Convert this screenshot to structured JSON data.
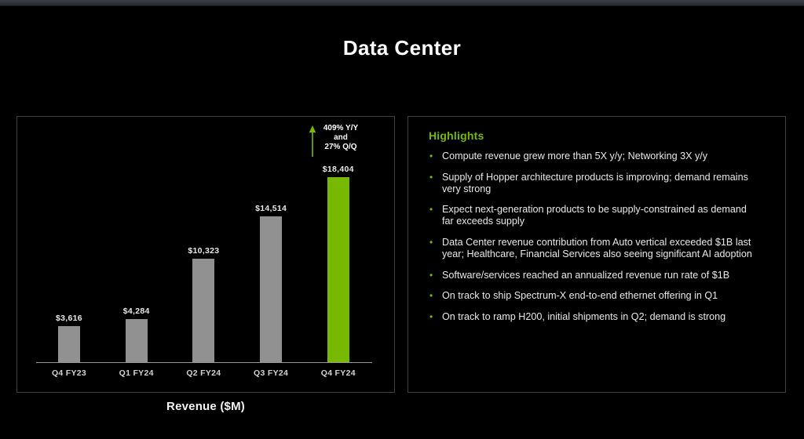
{
  "page": {
    "title": "Data Center",
    "background": "#000000",
    "accent_color": "#76b900"
  },
  "chart_data": {
    "type": "bar",
    "title": "",
    "categories": [
      "Q4 FY23",
      "Q1 FY24",
      "Q2 FY24",
      "Q3 FY24",
      "Q4 FY24"
    ],
    "values": [
      3616,
      4284,
      10323,
      14514,
      18404
    ],
    "value_labels": [
      "$3,616",
      "$4,284",
      "$10,323",
      "$14,514",
      "$18,404"
    ],
    "xlabel": "Revenue ($M)",
    "ylabel": "",
    "ylim": [
      0,
      18404
    ],
    "grid": false,
    "legend": false,
    "bar_default_color": "#919191",
    "highlight_color": "#76b900",
    "bar_colors": [
      "#919191",
      "#919191",
      "#919191",
      "#919191",
      "#76b900"
    ],
    "annotation": {
      "lines": [
        "409% Y/Y",
        "and",
        "27% Q/Q"
      ],
      "arrow": "up",
      "arrow_color": "#76b900"
    }
  },
  "highlights": {
    "heading": "Highlights",
    "heading_color": "#76b900",
    "bullets": [
      "Compute revenue grew more than 5X y/y; Networking 3X y/y",
      "Supply of Hopper architecture products is improving; demand remains very strong",
      "Expect next-generation products to be supply-constrained as demand far exceeds supply",
      "Data Center revenue contribution from Auto vertical exceeded $1B last year; Healthcare, Financial Services also seeing significant AI adoption",
      "Software/services reached an annualized revenue run rate of $1B",
      "On track to ship Spectrum-X end-to-end ethernet offering in Q1",
      "On track to ramp H200, initial shipments in Q2; demand is strong"
    ]
  }
}
